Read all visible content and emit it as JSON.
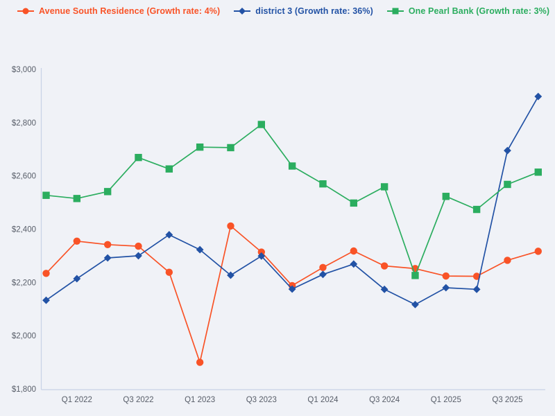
{
  "legend": {
    "items": [
      {
        "label": "Avenue South Residence (Growth rate: 4%)"
      },
      {
        "label": "district 3 (Growth rate: 36%)"
      },
      {
        "label": "One Pearl Bank (Growth rate: 3%)"
      }
    ]
  },
  "chart_data": {
    "type": "line",
    "title": "",
    "xlabel": "",
    "ylabel": "",
    "ylim": [
      1800,
      3000
    ],
    "grid": false,
    "legend_position": "top",
    "background_color": "#f0f2f7",
    "axis_line_color": "#c8d3e6",
    "tick_label_color": "#575d68",
    "categories": [
      "Q4 2021",
      "Q1 2022",
      "Q2 2022",
      "Q3 2022",
      "Q4 2022",
      "Q1 2023",
      "Q2 2023",
      "Q3 2023",
      "Q4 2023",
      "Q1 2024",
      "Q2 2024",
      "Q3 2024",
      "Q4 2024",
      "Q1 2025",
      "Q2 2025",
      "Q3 2025",
      "Q4 2025"
    ],
    "x_ticks": [
      {
        "index": 1,
        "label": "Q1 2022"
      },
      {
        "index": 3,
        "label": "Q3 2022"
      },
      {
        "index": 5,
        "label": "Q1 2023"
      },
      {
        "index": 7,
        "label": "Q3 2023"
      },
      {
        "index": 9,
        "label": "Q1 2024"
      },
      {
        "index": 11,
        "label": "Q3 2024"
      },
      {
        "index": 13,
        "label": "Q1 2025"
      },
      {
        "index": 15,
        "label": "Q3 2025"
      }
    ],
    "y_ticks": [
      {
        "value": 1800,
        "label": "$1,800"
      },
      {
        "value": 2000,
        "label": "$2,000"
      },
      {
        "value": 2200,
        "label": "$2,200"
      },
      {
        "value": 2400,
        "label": "$2,400"
      },
      {
        "value": 2600,
        "label": "$2,600"
      },
      {
        "value": 2800,
        "label": "$2,800"
      },
      {
        "value": 3000,
        "label": "$3,000"
      }
    ],
    "series": [
      {
        "name": "Avenue South Residence",
        "growth_rate": "4%",
        "color": "#F95327",
        "marker": "circle",
        "values": [
          2234,
          2355,
          2342,
          2336,
          2238,
          1900,
          2412,
          2314,
          2188,
          2256,
          2318,
          2262,
          2252,
          2224,
          2223,
          2283,
          2317
        ]
      },
      {
        "name": "district 3",
        "growth_rate": "36%",
        "color": "#2252A5",
        "marker": "diamond",
        "values": [
          2133,
          2214,
          2292,
          2300,
          2379,
          2323,
          2227,
          2299,
          2175,
          2230,
          2269,
          2174,
          2117,
          2180,
          2174,
          2695,
          2898
        ]
      },
      {
        "name": "One Pearl Bank",
        "growth_rate": "3%",
        "color": "#2BAD5F",
        "marker": "square",
        "values": [
          2527,
          2515,
          2541,
          2669,
          2626,
          2708,
          2706,
          2793,
          2637,
          2570,
          2498,
          2559,
          2226,
          2523,
          2474,
          2568,
          2614
        ]
      }
    ]
  }
}
